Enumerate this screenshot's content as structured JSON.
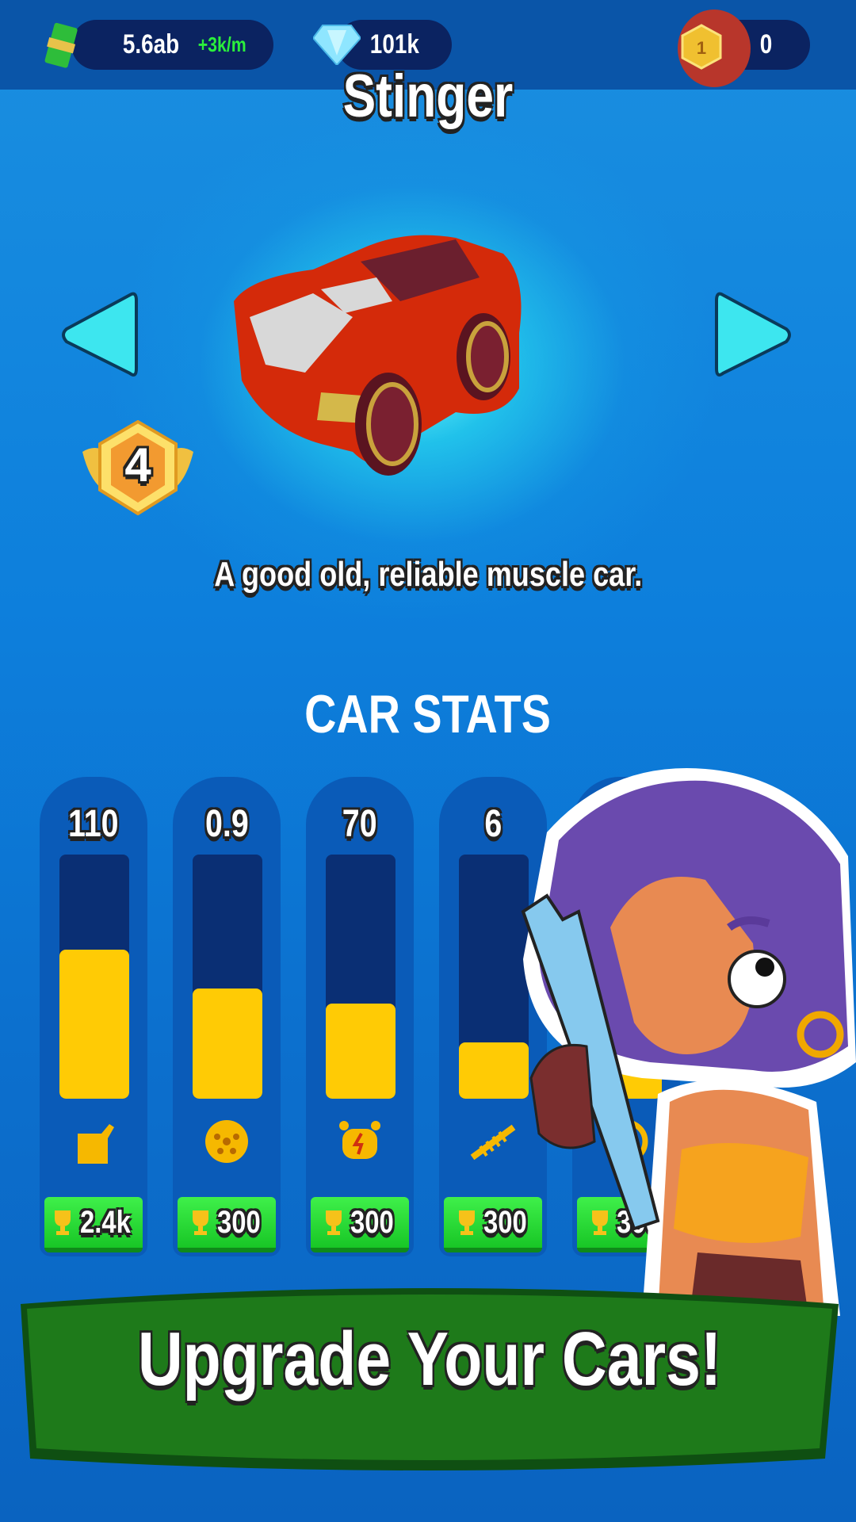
{
  "topbar": {
    "cash": "5.6ab",
    "cash_rate": "+3k/m",
    "gems": "101k",
    "rank_badge": "1",
    "trophies": "0"
  },
  "car": {
    "name": "Stinger",
    "level": "4",
    "description": "A good old, reliable muscle car."
  },
  "stats": {
    "title": "CAR STATS",
    "items": [
      {
        "value": "110",
        "icon": "fuel-can-icon",
        "fill_fraction": 0.61,
        "price": "2.4k"
      },
      {
        "value": "0.9",
        "icon": "wheel-icon",
        "fill_fraction": 0.45,
        "price": "300"
      },
      {
        "value": "70",
        "icon": "engine-icon",
        "fill_fraction": 0.39,
        "price": "300"
      },
      {
        "value": "6",
        "icon": "suspension-spring-icon",
        "fill_fraction": 0.23,
        "price": "300"
      },
      {
        "value": "",
        "icon": "steering-wheel-icon",
        "fill_fraction": 0.3,
        "price": "300"
      }
    ]
  },
  "banner": {
    "text": "Upgrade Your Cars!"
  },
  "colors": {
    "accent_yellow": "#ffcb05",
    "button_green": "#22d02f",
    "banner_green": "#1e7a1a",
    "background_blue": "#0d7fdc"
  }
}
